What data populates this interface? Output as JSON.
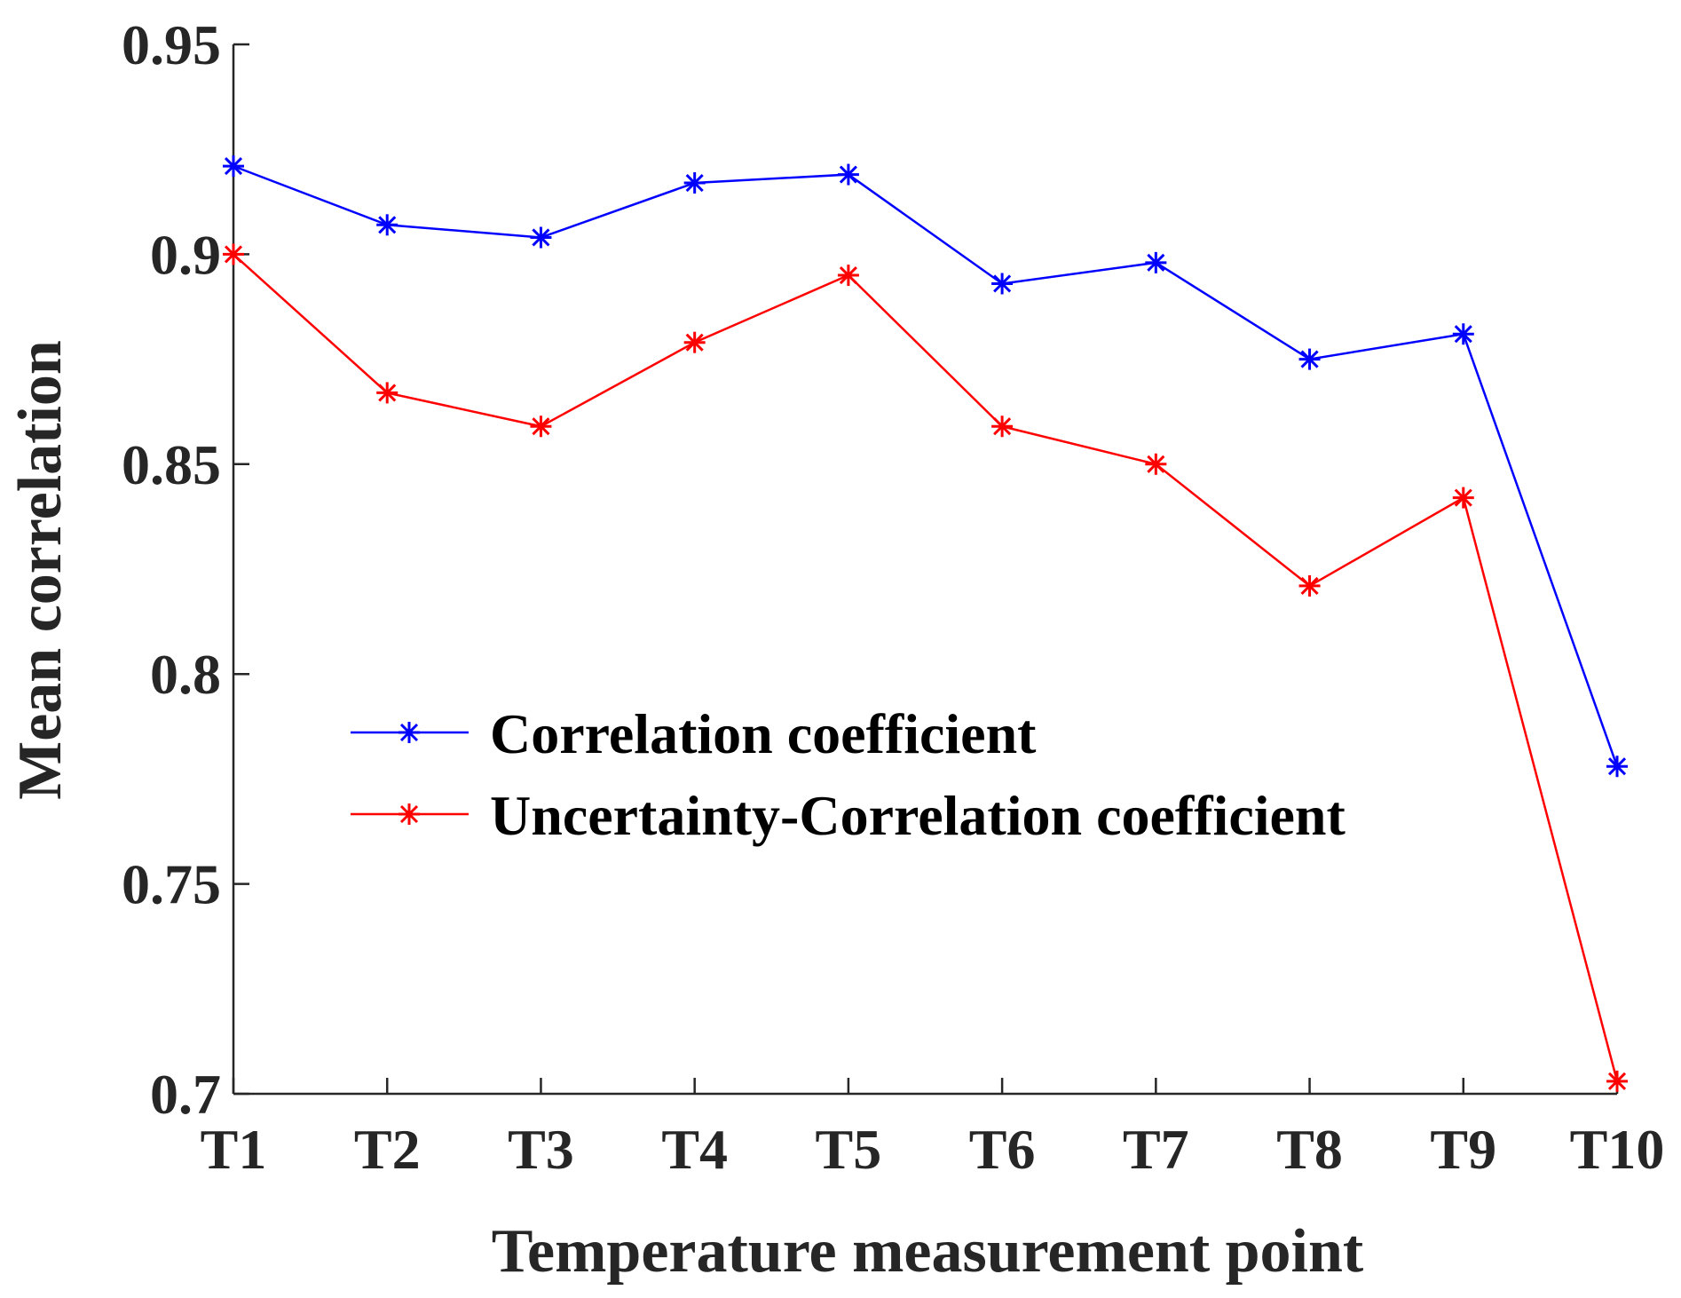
{
  "chart_data": {
    "type": "line",
    "title": "",
    "xlabel": "Temperature measurement point",
    "ylabel": "Mean correlation",
    "categories": [
      "T1",
      "T2",
      "T3",
      "T4",
      "T5",
      "T6",
      "T7",
      "T8",
      "T9",
      "T10"
    ],
    "ylim": [
      0.7,
      0.95
    ],
    "yticks": [
      0.7,
      0.75,
      0.8,
      0.85,
      0.9,
      0.95
    ],
    "ytick_labels": [
      "0.7",
      "0.75",
      "0.8",
      "0.85",
      "0.9",
      "0.95"
    ],
    "grid": false,
    "legend_position": "center",
    "series": [
      {
        "name": "Correlation coefficient",
        "color": "#0000ff",
        "marker": "asterisk",
        "values": [
          0.921,
          0.907,
          0.904,
          0.917,
          0.919,
          0.893,
          0.898,
          0.875,
          0.881,
          0.778
        ]
      },
      {
        "name": "Uncertainty-Correlation coefficient",
        "color": "#ff0000",
        "marker": "asterisk",
        "values": [
          0.9,
          0.867,
          0.859,
          0.879,
          0.895,
          0.859,
          0.85,
          0.821,
          0.842,
          0.703
        ]
      }
    ]
  }
}
